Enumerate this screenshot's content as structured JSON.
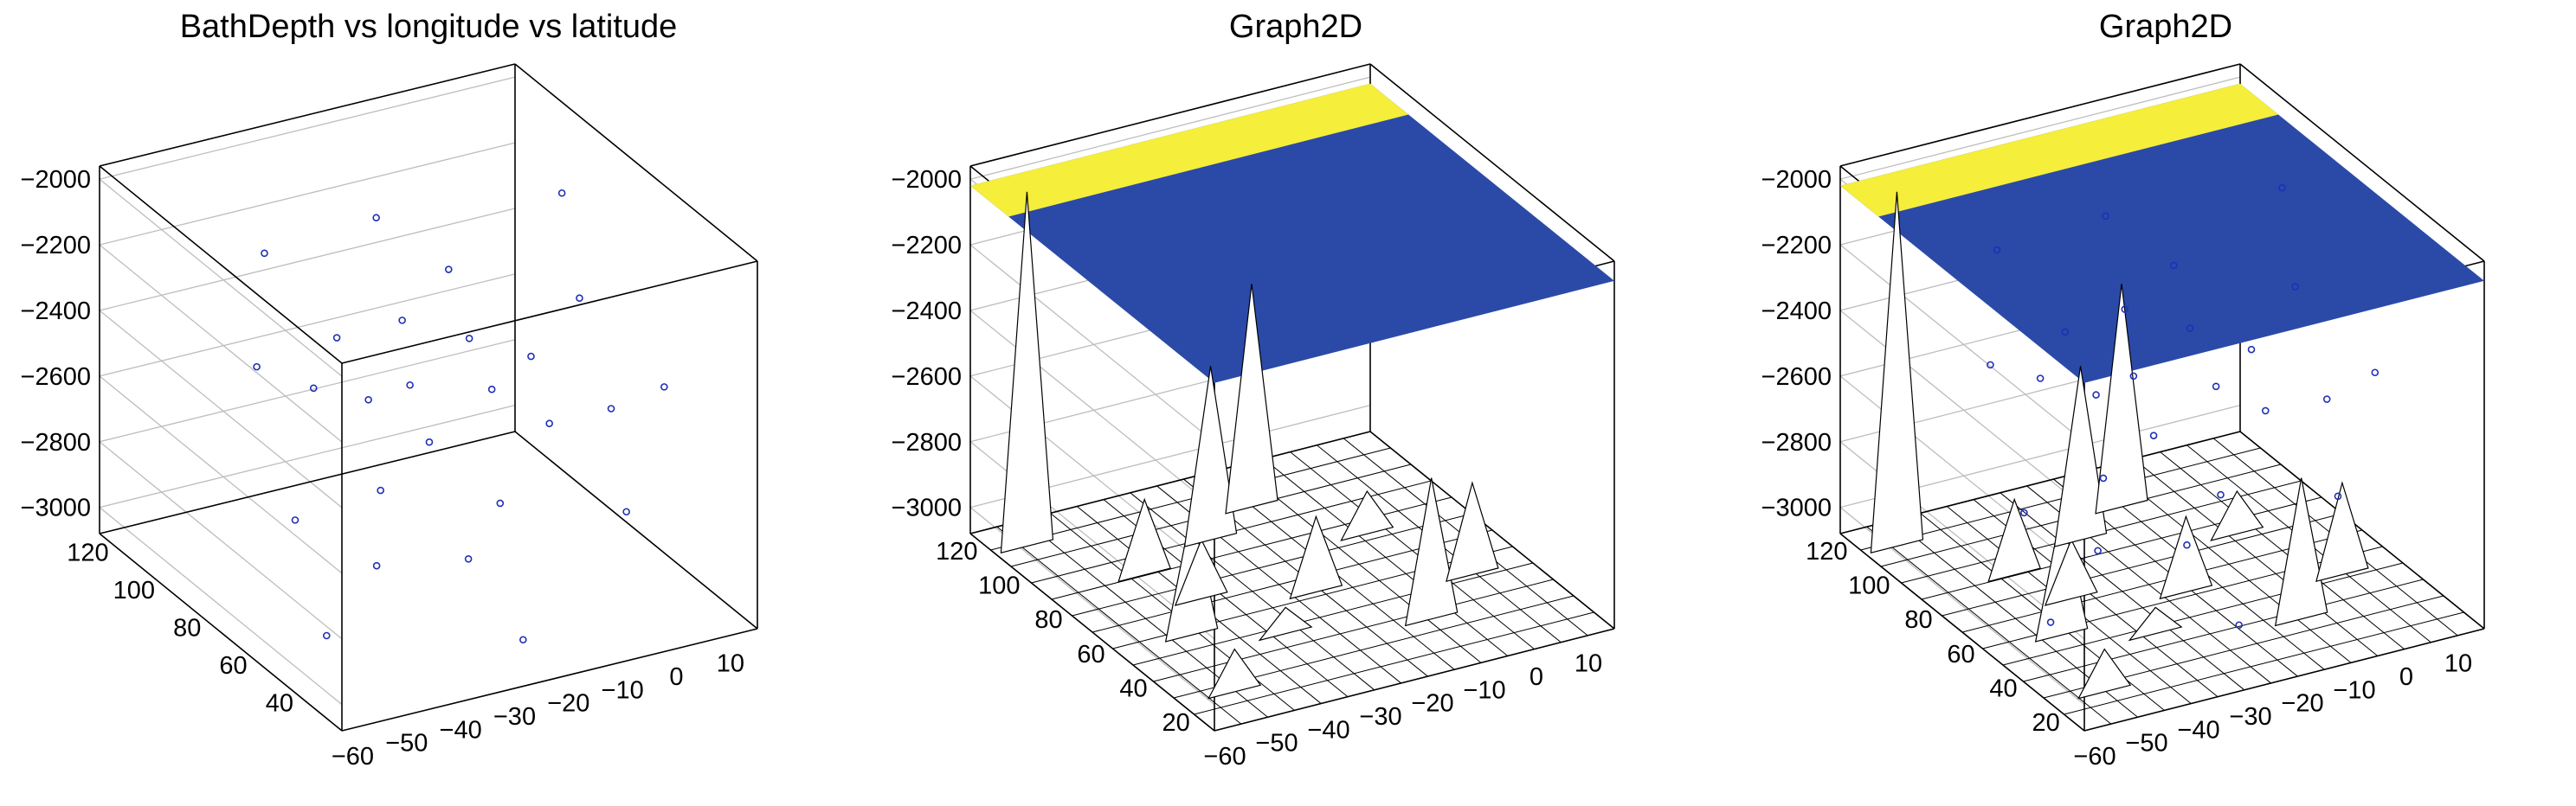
{
  "colors": {
    "background": "#ffffff",
    "box": "#000000",
    "grid": "#bdbdbd",
    "markers": "#1f2fb5",
    "surface_low": "#2b4aa8",
    "surface_high": "#f5ee3a",
    "surface_mid": "#58b8c8"
  },
  "chart_data": [
    {
      "type": "scatter",
      "title": "BathDepth vs longitude vs latitude",
      "x_label": "",
      "y_label": "",
      "z_label": "",
      "x_ticks": [
        "−60",
        "−50",
        "−40",
        "−30",
        "−20",
        "−10",
        "0",
        "10"
      ],
      "y_ticks": [
        "40",
        "60",
        "80",
        "100",
        "120"
      ],
      "z_ticks": [
        "−2000",
        "−2200",
        "−2400",
        "−2600",
        "−2800",
        "−3000"
      ],
      "xlim": [
        -62,
        15
      ],
      "ylim": [
        25,
        130
      ],
      "zlim": [
        -3080,
        -1960
      ],
      "points": [
        {
          "x": -55,
          "y": 48,
          "z": -2950
        },
        {
          "x": -50,
          "y": 38,
          "z": -2700
        },
        {
          "x": -48,
          "y": 70,
          "z": -2350
        },
        {
          "x": -45,
          "y": 85,
          "z": -2850
        },
        {
          "x": -42,
          "y": 55,
          "z": -2600
        },
        {
          "x": -40,
          "y": 110,
          "z": -2200
        },
        {
          "x": -38,
          "y": 118,
          "z": -2600
        },
        {
          "x": -35,
          "y": 62,
          "z": -2150
        },
        {
          "x": -33,
          "y": 95,
          "z": -2400
        },
        {
          "x": -30,
          "y": 45,
          "z": -2800
        },
        {
          "x": -28,
          "y": 75,
          "z": -2450
        },
        {
          "x": -25,
          "y": 100,
          "z": -2650
        },
        {
          "x": -22,
          "y": 40,
          "z": -3050
        },
        {
          "x": -20,
          "y": 68,
          "z": -2300
        },
        {
          "x": -18,
          "y": 90,
          "z": -2750
        },
        {
          "x": -15,
          "y": 120,
          "z": -2250
        },
        {
          "x": -12,
          "y": 52,
          "z": -2500
        },
        {
          "x": -10,
          "y": 78,
          "z": -2900
        },
        {
          "x": -8,
          "y": 105,
          "z": -2350
        },
        {
          "x": -5,
          "y": 35,
          "z": -2700
        },
        {
          "x": -3,
          "y": 60,
          "z": -2200
        },
        {
          "x": 0,
          "y": 88,
          "z": -2550
        },
        {
          "x": 3,
          "y": 112,
          "z": -2800
        },
        {
          "x": 5,
          "y": 42,
          "z": -2400
        },
        {
          "x": 8,
          "y": 72,
          "z": -2650
        },
        {
          "x": 10,
          "y": 98,
          "z": -2150
        }
      ]
    },
    {
      "type": "surface",
      "title": "Graph2D",
      "x_label": "",
      "y_label": "",
      "z_label": "",
      "x_ticks": [
        "−60",
        "−50",
        "−40",
        "−30",
        "−20",
        "−10",
        "0",
        "10"
      ],
      "y_ticks": [
        "20",
        "40",
        "60",
        "80",
        "100",
        "120"
      ],
      "z_ticks": [
        "−2000",
        "−2200",
        "−2400",
        "−2600",
        "−2800",
        "−3000"
      ],
      "xlim": [
        -62,
        15
      ],
      "ylim": [
        15,
        130
      ],
      "zlim": [
        -3080,
        -1960
      ],
      "grid_nx": 15,
      "grid_ny": 12,
      "peaks": [
        {
          "x": -56,
          "y": 118,
          "z": -2000
        },
        {
          "x": -52,
          "y": 30,
          "z": -2950
        },
        {
          "x": -48,
          "y": 60,
          "z": -2700
        },
        {
          "x": -44,
          "y": 92,
          "z": -2850
        },
        {
          "x": -40,
          "y": 75,
          "z": -2900
        },
        {
          "x": -34,
          "y": 50,
          "z": -3000
        },
        {
          "x": -28,
          "y": 100,
          "z": -2550
        },
        {
          "x": -22,
          "y": 65,
          "z": -2850
        },
        {
          "x": -16,
          "y": 110,
          "z": -2400
        },
        {
          "x": -10,
          "y": 40,
          "z": -2650
        },
        {
          "x": -4,
          "y": 85,
          "z": -2950
        },
        {
          "x": 4,
          "y": 55,
          "z": -2800
        }
      ]
    },
    {
      "type": "surface",
      "title": "Graph2D",
      "x_label": "",
      "y_label": "",
      "z_label": "",
      "x_ticks": [
        "−60",
        "−50",
        "−40",
        "−30",
        "−20",
        "−10",
        "0",
        "10"
      ],
      "y_ticks": [
        "20",
        "40",
        "60",
        "80",
        "100",
        "120"
      ],
      "z_ticks": [
        "−2000",
        "−2200",
        "−2400",
        "−2600",
        "−2800",
        "−3000"
      ],
      "xlim": [
        -62,
        15
      ],
      "ylim": [
        15,
        130
      ],
      "zlim": [
        -3080,
        -1960
      ],
      "grid_nx": 15,
      "grid_ny": 12,
      "markers_overlay": true,
      "peaks": [
        {
          "x": -56,
          "y": 118,
          "z": -2000
        },
        {
          "x": -52,
          "y": 30,
          "z": -2950
        },
        {
          "x": -48,
          "y": 60,
          "z": -2700
        },
        {
          "x": -44,
          "y": 92,
          "z": -2850
        },
        {
          "x": -40,
          "y": 75,
          "z": -2900
        },
        {
          "x": -34,
          "y": 50,
          "z": -3000
        },
        {
          "x": -28,
          "y": 100,
          "z": -2550
        },
        {
          "x": -22,
          "y": 65,
          "z": -2850
        },
        {
          "x": -16,
          "y": 110,
          "z": -2400
        },
        {
          "x": -10,
          "y": 40,
          "z": -2650
        },
        {
          "x": -4,
          "y": 85,
          "z": -2950
        },
        {
          "x": 4,
          "y": 55,
          "z": -2800
        }
      ]
    }
  ]
}
